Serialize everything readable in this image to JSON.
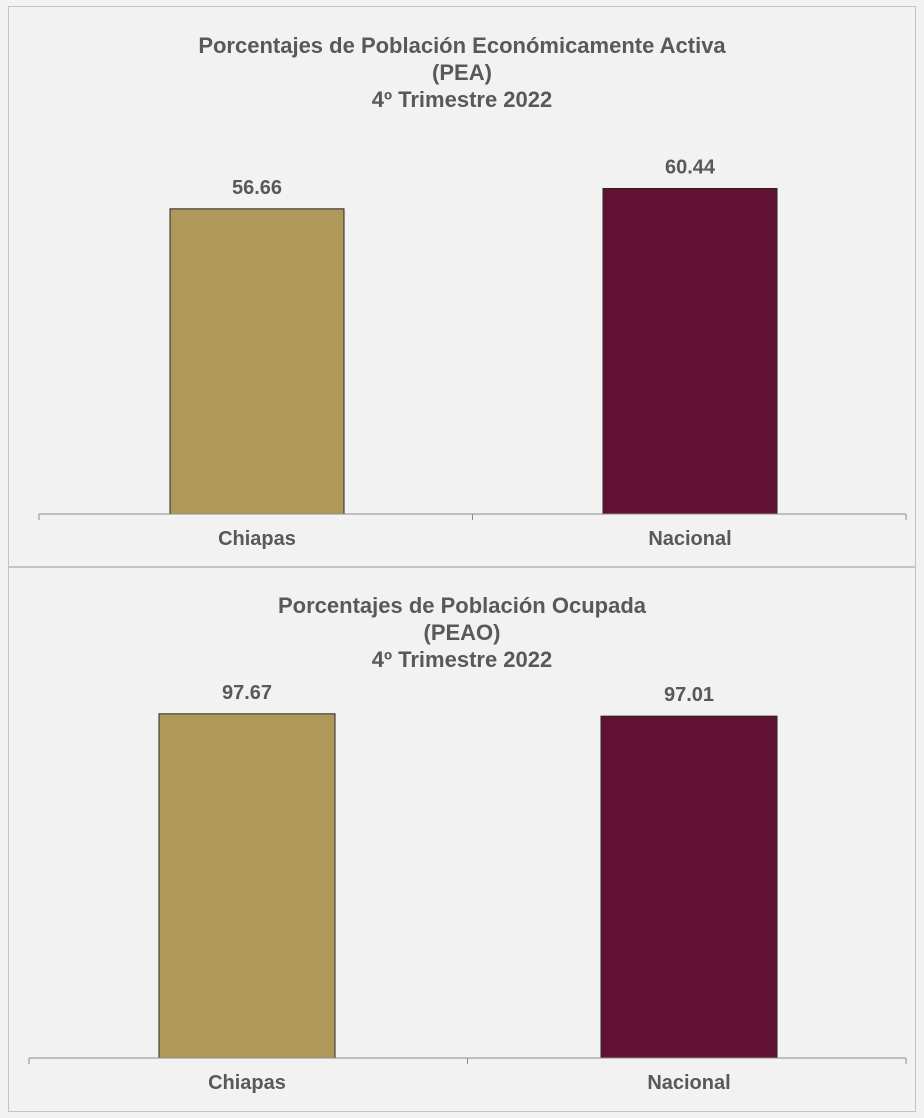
{
  "chart_data": [
    {
      "type": "bar",
      "title": [
        "Porcentajes de Población Económicamente Activa",
        "(PEA)",
        "4º Trimestre 2022"
      ],
      "categories": [
        "Chiapas",
        "Nacional"
      ],
      "values": [
        56.66,
        60.44
      ],
      "value_labels": [
        "56.66",
        "60.44"
      ],
      "colors": [
        "#b0985a",
        "#611232"
      ],
      "ylim": [
        0,
        70
      ],
      "grid": false
    },
    {
      "type": "bar",
      "title": [
        "Porcentajes de Población Ocupada",
        "(PEAO)",
        "4º Trimestre 2022"
      ],
      "categories": [
        "Chiapas",
        "Nacional"
      ],
      "values": [
        97.67,
        97.01
      ],
      "value_labels": [
        "97.67",
        "97.01"
      ],
      "colors": [
        "#b0985a",
        "#611232"
      ],
      "ylim": [
        0,
        105
      ],
      "grid": false
    }
  ]
}
